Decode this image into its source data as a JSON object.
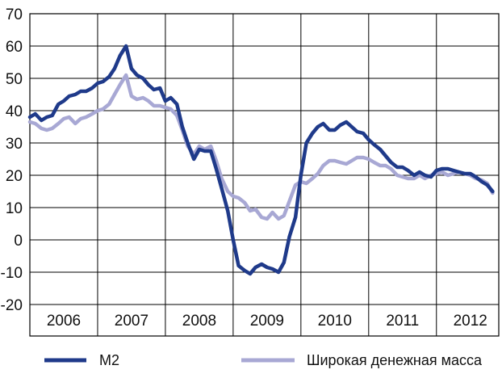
{
  "chart_data": {
    "type": "line",
    "title": "",
    "xlabel": "",
    "ylabel": "",
    "x_categories": [
      "2006",
      "2007",
      "2008",
      "2009",
      "2010",
      "2011",
      "2012"
    ],
    "y_ticks": [
      70,
      60,
      50,
      40,
      30,
      20,
      10,
      0,
      -10,
      -20
    ],
    "ylim": [
      -20,
      70
    ],
    "x_range": [
      2006.0,
      2012.92
    ],
    "grid": true,
    "legend_position": "bottom",
    "series": [
      {
        "name": "M2",
        "color": "#1f3a8a",
        "points": [
          [
            2006.0,
            38
          ],
          [
            2006.08,
            39
          ],
          [
            2006.17,
            37
          ],
          [
            2006.25,
            38
          ],
          [
            2006.33,
            38.5
          ],
          [
            2006.42,
            42
          ],
          [
            2006.5,
            43
          ],
          [
            2006.58,
            44.5
          ],
          [
            2006.67,
            45
          ],
          [
            2006.75,
            46
          ],
          [
            2006.83,
            46
          ],
          [
            2006.92,
            47
          ],
          [
            2007.0,
            48.5
          ],
          [
            2007.08,
            49
          ],
          [
            2007.17,
            50.5
          ],
          [
            2007.25,
            53
          ],
          [
            2007.33,
            57
          ],
          [
            2007.42,
            60
          ],
          [
            2007.5,
            53
          ],
          [
            2007.58,
            51
          ],
          [
            2007.67,
            50
          ],
          [
            2007.75,
            48
          ],
          [
            2007.83,
            46.5
          ],
          [
            2007.92,
            47
          ],
          [
            2008.0,
            43
          ],
          [
            2008.08,
            44
          ],
          [
            2008.17,
            42
          ],
          [
            2008.25,
            35
          ],
          [
            2008.33,
            30
          ],
          [
            2008.42,
            25
          ],
          [
            2008.5,
            28
          ],
          [
            2008.58,
            27.5
          ],
          [
            2008.67,
            27.5
          ],
          [
            2008.75,
            22
          ],
          [
            2008.83,
            16
          ],
          [
            2008.92,
            9
          ],
          [
            2009.0,
            0
          ],
          [
            2009.08,
            -8
          ],
          [
            2009.17,
            -9.5
          ],
          [
            2009.25,
            -10.5
          ],
          [
            2009.33,
            -8.5
          ],
          [
            2009.42,
            -7.5
          ],
          [
            2009.5,
            -8.5
          ],
          [
            2009.58,
            -9
          ],
          [
            2009.67,
            -10
          ],
          [
            2009.75,
            -7
          ],
          [
            2009.83,
            1
          ],
          [
            2009.92,
            7
          ],
          [
            2010.0,
            20
          ],
          [
            2010.08,
            30
          ],
          [
            2010.17,
            33
          ],
          [
            2010.25,
            35
          ],
          [
            2010.33,
            36
          ],
          [
            2010.42,
            34
          ],
          [
            2010.5,
            34
          ],
          [
            2010.58,
            35.5
          ],
          [
            2010.67,
            36.5
          ],
          [
            2010.75,
            35
          ],
          [
            2010.83,
            33.5
          ],
          [
            2010.92,
            33
          ],
          [
            2011.0,
            31
          ],
          [
            2011.08,
            29.5
          ],
          [
            2011.17,
            28
          ],
          [
            2011.25,
            26
          ],
          [
            2011.33,
            24
          ],
          [
            2011.42,
            22.5
          ],
          [
            2011.5,
            22.5
          ],
          [
            2011.58,
            21.5
          ],
          [
            2011.67,
            20
          ],
          [
            2011.75,
            21
          ],
          [
            2011.83,
            20
          ],
          [
            2011.92,
            19.5
          ],
          [
            2012.0,
            21.5
          ],
          [
            2012.08,
            22
          ],
          [
            2012.17,
            22
          ],
          [
            2012.25,
            21.5
          ],
          [
            2012.33,
            21
          ],
          [
            2012.42,
            20.5
          ],
          [
            2012.5,
            20.5
          ],
          [
            2012.58,
            19.5
          ],
          [
            2012.67,
            18
          ],
          [
            2012.75,
            17
          ],
          [
            2012.83,
            15
          ]
        ]
      },
      {
        "name": "Широкая денежная масса",
        "color": "#a8a8d4",
        "points": [
          [
            2006.0,
            36.5
          ],
          [
            2006.08,
            36
          ],
          [
            2006.17,
            34.5
          ],
          [
            2006.25,
            34
          ],
          [
            2006.33,
            34.5
          ],
          [
            2006.42,
            36
          ],
          [
            2006.5,
            37.5
          ],
          [
            2006.58,
            38
          ],
          [
            2006.67,
            36
          ],
          [
            2006.75,
            37.5
          ],
          [
            2006.83,
            38
          ],
          [
            2006.92,
            39
          ],
          [
            2007.0,
            40
          ],
          [
            2007.08,
            40.5
          ],
          [
            2007.17,
            42
          ],
          [
            2007.25,
            45
          ],
          [
            2007.33,
            48
          ],
          [
            2007.42,
            51
          ],
          [
            2007.5,
            44.5
          ],
          [
            2007.58,
            43.5
          ],
          [
            2007.67,
            44
          ],
          [
            2007.75,
            43
          ],
          [
            2007.83,
            41.5
          ],
          [
            2007.92,
            41.5
          ],
          [
            2008.0,
            41
          ],
          [
            2008.08,
            40.5
          ],
          [
            2008.17,
            38.5
          ],
          [
            2008.25,
            34
          ],
          [
            2008.33,
            29
          ],
          [
            2008.42,
            26.5
          ],
          [
            2008.5,
            29
          ],
          [
            2008.58,
            28
          ],
          [
            2008.67,
            29
          ],
          [
            2008.75,
            24.5
          ],
          [
            2008.83,
            19
          ],
          [
            2008.92,
            15
          ],
          [
            2009.0,
            13.5
          ],
          [
            2009.08,
            13
          ],
          [
            2009.17,
            11.5
          ],
          [
            2009.25,
            9
          ],
          [
            2009.33,
            9.5
          ],
          [
            2009.42,
            7
          ],
          [
            2009.5,
            6.5
          ],
          [
            2009.58,
            8.5
          ],
          [
            2009.67,
            6.5
          ],
          [
            2009.75,
            7.5
          ],
          [
            2009.83,
            12
          ],
          [
            2009.92,
            17
          ],
          [
            2010.0,
            18
          ],
          [
            2010.08,
            17.5
          ],
          [
            2010.17,
            19
          ],
          [
            2010.25,
            20.5
          ],
          [
            2010.33,
            23
          ],
          [
            2010.42,
            24.5
          ],
          [
            2010.5,
            24.5
          ],
          [
            2010.58,
            24
          ],
          [
            2010.67,
            23.5
          ],
          [
            2010.75,
            24.5
          ],
          [
            2010.83,
            25.5
          ],
          [
            2010.92,
            25.5
          ],
          [
            2011.0,
            25
          ],
          [
            2011.08,
            24
          ],
          [
            2011.17,
            23
          ],
          [
            2011.25,
            23
          ],
          [
            2011.33,
            22
          ],
          [
            2011.42,
            20
          ],
          [
            2011.5,
            19.5
          ],
          [
            2011.58,
            19
          ],
          [
            2011.67,
            19
          ],
          [
            2011.75,
            20
          ],
          [
            2011.83,
            19
          ],
          [
            2011.92,
            20
          ],
          [
            2012.0,
            20.5
          ],
          [
            2012.08,
            21
          ],
          [
            2012.17,
            20
          ],
          [
            2012.25,
            20.5
          ],
          [
            2012.33,
            21
          ],
          [
            2012.42,
            20.5
          ],
          [
            2012.5,
            20
          ],
          [
            2012.58,
            19
          ],
          [
            2012.67,
            18.5
          ],
          [
            2012.75,
            17.5
          ],
          [
            2012.83,
            14.5
          ]
        ]
      }
    ]
  }
}
